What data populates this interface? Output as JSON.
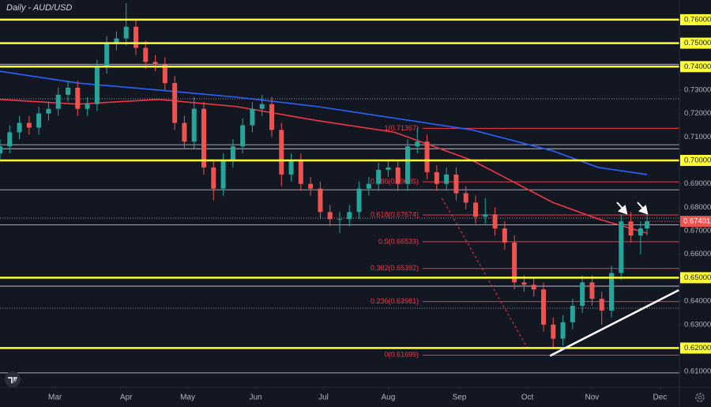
{
  "chart_data": {
    "type": "candlestick",
    "title": "Daily - AUD/USD",
    "up_color": "#26a69a",
    "down_color": "#ef5350",
    "x": [
      0,
      3,
      6,
      9,
      12,
      15,
      18,
      21,
      24,
      27,
      30,
      33,
      36,
      39,
      42,
      45,
      48,
      51,
      54,
      57,
      60,
      63,
      66,
      69,
      72,
      75,
      78,
      81,
      84,
      87,
      90,
      93,
      96,
      99,
      102,
      105,
      108,
      111,
      114,
      117,
      120,
      123,
      126,
      129,
      132,
      135,
      138,
      141,
      144,
      147,
      150,
      153,
      156,
      159,
      162,
      165,
      168,
      171,
      174,
      177,
      180,
      183,
      186,
      189,
      192,
      195,
      198,
      200
    ],
    "open": [
      0.703,
      0.706,
      0.712,
      0.716,
      0.714,
      0.72,
      0.722,
      0.728,
      0.731,
      0.722,
      0.724,
      0.74,
      0.75,
      0.752,
      0.757,
      0.748,
      0.742,
      0.741,
      0.733,
      0.716,
      0.708,
      0.722,
      0.697,
      0.688,
      0.7,
      0.706,
      0.715,
      0.722,
      0.724,
      0.713,
      0.694,
      0.7,
      0.69,
      0.688,
      0.678,
      0.675,
      0.675,
      0.678,
      0.688,
      0.69,
      0.696,
      0.697,
      0.69,
      0.706,
      0.708,
      0.695,
      0.69,
      0.694,
      0.686,
      0.682,
      0.676,
      0.677,
      0.671,
      0.665,
      0.648,
      0.647,
      0.645,
      0.63,
      0.624,
      0.631,
      0.638,
      0.648,
      0.641,
      0.636,
      0.652,
      0.674,
      0.668,
      0.671
    ],
    "high": [
      0.709,
      0.715,
      0.719,
      0.719,
      0.723,
      0.725,
      0.731,
      0.734,
      0.734,
      0.727,
      0.743,
      0.753,
      0.755,
      0.767,
      0.76,
      0.751,
      0.745,
      0.744,
      0.736,
      0.719,
      0.727,
      0.725,
      0.7,
      0.703,
      0.709,
      0.718,
      0.725,
      0.728,
      0.727,
      0.716,
      0.703,
      0.703,
      0.693,
      0.691,
      0.681,
      0.678,
      0.681,
      0.691,
      0.693,
      0.699,
      0.7,
      0.7,
      0.709,
      0.714,
      0.711,
      0.698,
      0.697,
      0.697,
      0.689,
      0.685,
      0.684,
      0.68,
      0.674,
      0.668,
      0.651,
      0.65,
      0.648,
      0.633,
      0.634,
      0.641,
      0.651,
      0.651,
      0.644,
      0.655,
      0.677,
      0.678,
      0.674,
      0.677
    ],
    "low": [
      0.7,
      0.703,
      0.709,
      0.711,
      0.711,
      0.717,
      0.719,
      0.725,
      0.719,
      0.719,
      0.721,
      0.737,
      0.747,
      0.749,
      0.745,
      0.739,
      0.738,
      0.73,
      0.713,
      0.705,
      0.705,
      0.694,
      0.683,
      0.685,
      0.697,
      0.703,
      0.712,
      0.719,
      0.71,
      0.689,
      0.691,
      0.687,
      0.685,
      0.675,
      0.672,
      0.669,
      0.672,
      0.675,
      0.685,
      0.687,
      0.693,
      0.687,
      0.687,
      0.703,
      0.692,
      0.687,
      0.687,
      0.683,
      0.679,
      0.673,
      0.673,
      0.668,
      0.662,
      0.645,
      0.644,
      0.642,
      0.627,
      0.62,
      0.621,
      0.628,
      0.635,
      0.638,
      0.63,
      0.633,
      0.649,
      0.665,
      0.66,
      0.668
    ],
    "close": [
      0.706,
      0.712,
      0.716,
      0.714,
      0.72,
      0.722,
      0.728,
      0.731,
      0.722,
      0.724,
      0.74,
      0.75,
      0.752,
      0.757,
      0.748,
      0.742,
      0.741,
      0.733,
      0.716,
      0.708,
      0.722,
      0.697,
      0.688,
      0.7,
      0.706,
      0.715,
      0.722,
      0.724,
      0.713,
      0.694,
      0.7,
      0.69,
      0.688,
      0.678,
      0.675,
      0.675,
      0.678,
      0.688,
      0.69,
      0.696,
      0.697,
      0.69,
      0.706,
      0.708,
      0.695,
      0.69,
      0.694,
      0.686,
      0.682,
      0.676,
      0.677,
      0.671,
      0.665,
      0.648,
      0.647,
      0.645,
      0.63,
      0.624,
      0.631,
      0.638,
      0.648,
      0.641,
      0.636,
      0.652,
      0.674,
      0.668,
      0.671,
      0.67401
    ],
    "xlim": [
      0,
      210
    ],
    "xticks": [
      {
        "value": 17,
        "label": "Mar"
      },
      {
        "value": 39,
        "label": "Apr"
      },
      {
        "value": 58,
        "label": "May"
      },
      {
        "value": 79,
        "label": "Jun"
      },
      {
        "value": 100,
        "label": "Jul"
      },
      {
        "value": 120,
        "label": "Aug"
      },
      {
        "value": 142,
        "label": "Sep"
      },
      {
        "value": 163,
        "label": "Oct"
      },
      {
        "value": 183,
        "label": "Nov"
      },
      {
        "value": 204,
        "label": "Dec"
      }
    ],
    "ylim": [
      0.6033,
      0.7684
    ],
    "yticks": [
      {
        "value": 0.76,
        "label": "0.76000"
      },
      {
        "value": 0.75,
        "label": "0.75000"
      },
      {
        "value": 0.74,
        "label": "0.74000"
      },
      {
        "value": 0.73,
        "label": "0.73000"
      },
      {
        "value": 0.72,
        "label": "0.72000"
      },
      {
        "value": 0.71,
        "label": "0.71000"
      },
      {
        "value": 0.7,
        "label": "0.70000"
      },
      {
        "value": 0.69,
        "label": "0.69000"
      },
      {
        "value": 0.68,
        "label": "0.68000"
      },
      {
        "value": 0.67,
        "label": "0.67000"
      },
      {
        "value": 0.66,
        "label": "0.66000"
      },
      {
        "value": 0.65,
        "label": "0.65000"
      },
      {
        "value": 0.64,
        "label": "0.64000"
      },
      {
        "value": 0.63,
        "label": "0.63000"
      },
      {
        "value": 0.62,
        "label": "0.62000"
      },
      {
        "value": 0.61,
        "label": "0.61000"
      }
    ],
    "moving_averages": [
      {
        "color": "#2962ff",
        "x": [
          0,
          24,
          49,
          73,
          98,
          122,
          146,
          171,
          185,
          200
        ],
        "values": [
          0.738,
          0.733,
          0.73,
          0.727,
          0.723,
          0.718,
          0.713,
          0.704,
          0.697,
          0.694
        ]
      },
      {
        "color": "#f23645",
        "x": [
          0,
          24,
          49,
          73,
          98,
          122,
          146,
          171,
          185,
          200
        ],
        "values": [
          0.726,
          0.724,
          0.726,
          0.723,
          0.717,
          0.712,
          0.7,
          0.682,
          0.675,
          0.669
        ]
      }
    ],
    "yellow_levels": {
      "color": "#ffff33",
      "values": [
        0.76,
        0.75,
        0.74,
        0.7,
        0.65,
        0.62
      ]
    },
    "levels": {
      "color": "#d1d4dc",
      "values": [
        0.741,
        0.7067,
        0.705,
        0.6875,
        0.6725,
        0.6464,
        0.6094
      ]
    },
    "dotted_levels": {
      "color": "#9598a1",
      "values": [
        0.7263,
        0.6754,
        0.637
      ]
    },
    "fib": {
      "color": "#f23645",
      "levels": [
        {
          "value": 0.71367,
          "label": "1(0.71367)"
        },
        {
          "value": 0.69085,
          "label": "0.786(0.69085)"
        },
        {
          "value": 0.67674,
          "label": "0.618(0.67674)"
        },
        {
          "value": 0.66533,
          "label": "0.5(0.66533)"
        },
        {
          "value": 0.65392,
          "label": "0.382(0.65392)"
        },
        {
          "value": 0.63981,
          "label": "0.236(0.63981)"
        },
        {
          "value": 0.61699,
          "label": "0(0.61699)"
        }
      ]
    },
    "trendline": {
      "color": "#ffffff",
      "x": [
        170,
        209.8
      ],
      "values": [
        0.6167,
        0.6447
      ]
    },
    "projection": {
      "color": "#f23645",
      "x": [
        136.6,
        163
      ],
      "values": [
        0.6839,
        0.62
      ]
    }
  }
}
